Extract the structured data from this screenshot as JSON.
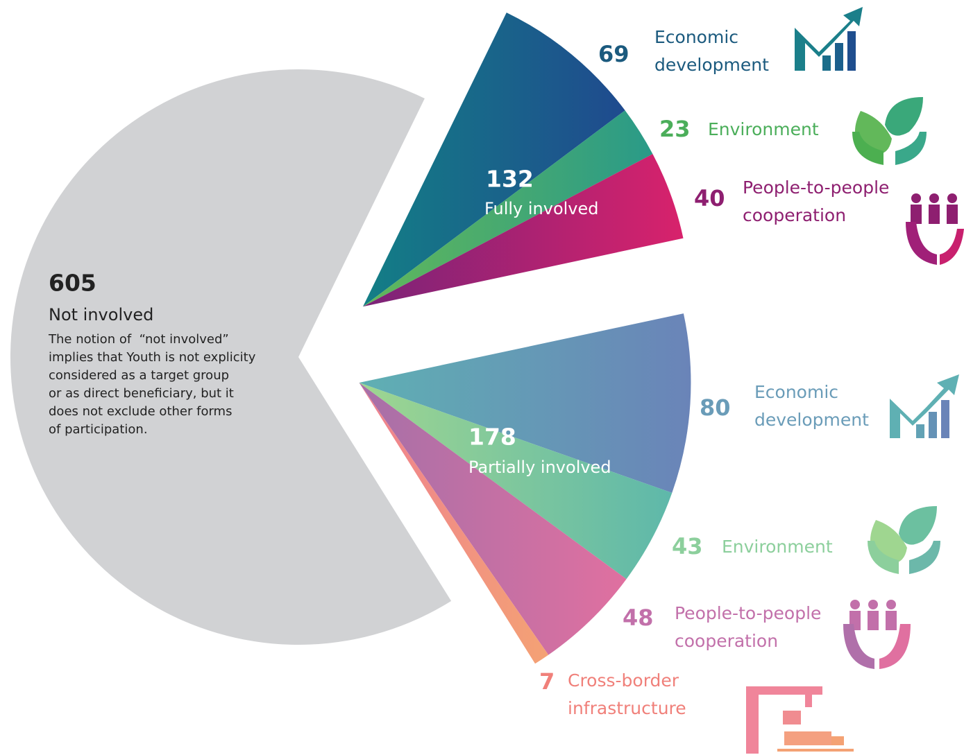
{
  "chart_data": {
    "type": "exploded-pie",
    "slices": [
      {
        "label": "Fully involved",
        "value": 132,
        "label_color": "#ffffff",
        "segments": [
          {
            "name_lines": [
              "Economic",
              "development"
            ],
            "value": 69,
            "colors": [
              "#137f86",
              "#1f4a8e"
            ],
            "label_color": "#1b5a7e"
          },
          {
            "name_lines": [
              "Environment"
            ],
            "value": 23,
            "colors": [
              "#62b85a",
              "#2a9a88"
            ],
            "label_color": "#4bae5a"
          },
          {
            "name_lines": [
              "People-to-people",
              "cooperation"
            ],
            "value": 40,
            "colors": [
              "#7a2378",
              "#d8226c"
            ],
            "label_color": "#8e1f70"
          }
        ]
      },
      {
        "label": "Partially involved",
        "value": 178,
        "label_color": "#ffffff",
        "segments": [
          {
            "name_lines": [
              "Economic",
              "development"
            ],
            "value": 80,
            "colors": [
              "#5fb0b3",
              "#6a84b8"
            ],
            "label_color": "#6a9cb8"
          },
          {
            "name_lines": [
              "Environment"
            ],
            "value": 43,
            "colors": [
              "#9fd690",
              "#5eb8aa"
            ],
            "label_color": "#8ccf9c"
          },
          {
            "name_lines": [
              "People-to-people",
              "cooperation"
            ],
            "value": 48,
            "colors": [
              "#a670a8",
              "#e070a0"
            ],
            "label_color": "#c270aa"
          },
          {
            "name_lines": [
              "Cross-border",
              "infrastructure"
            ],
            "value": 7,
            "colors": [
              "#ee8090",
              "#f4a274"
            ],
            "label_color": "#f0807a"
          }
        ]
      },
      {
        "label": "Not involved",
        "value": 605,
        "label_color": "#222222",
        "color": "#d1d2d4",
        "note_lines": [
          "The notion of  “not involved”",
          "implies that Youth is not explicity",
          "considered as a target group",
          "or as direct beneficiary, but it",
          "does not exclude other forms",
          "of participation."
        ]
      }
    ]
  }
}
